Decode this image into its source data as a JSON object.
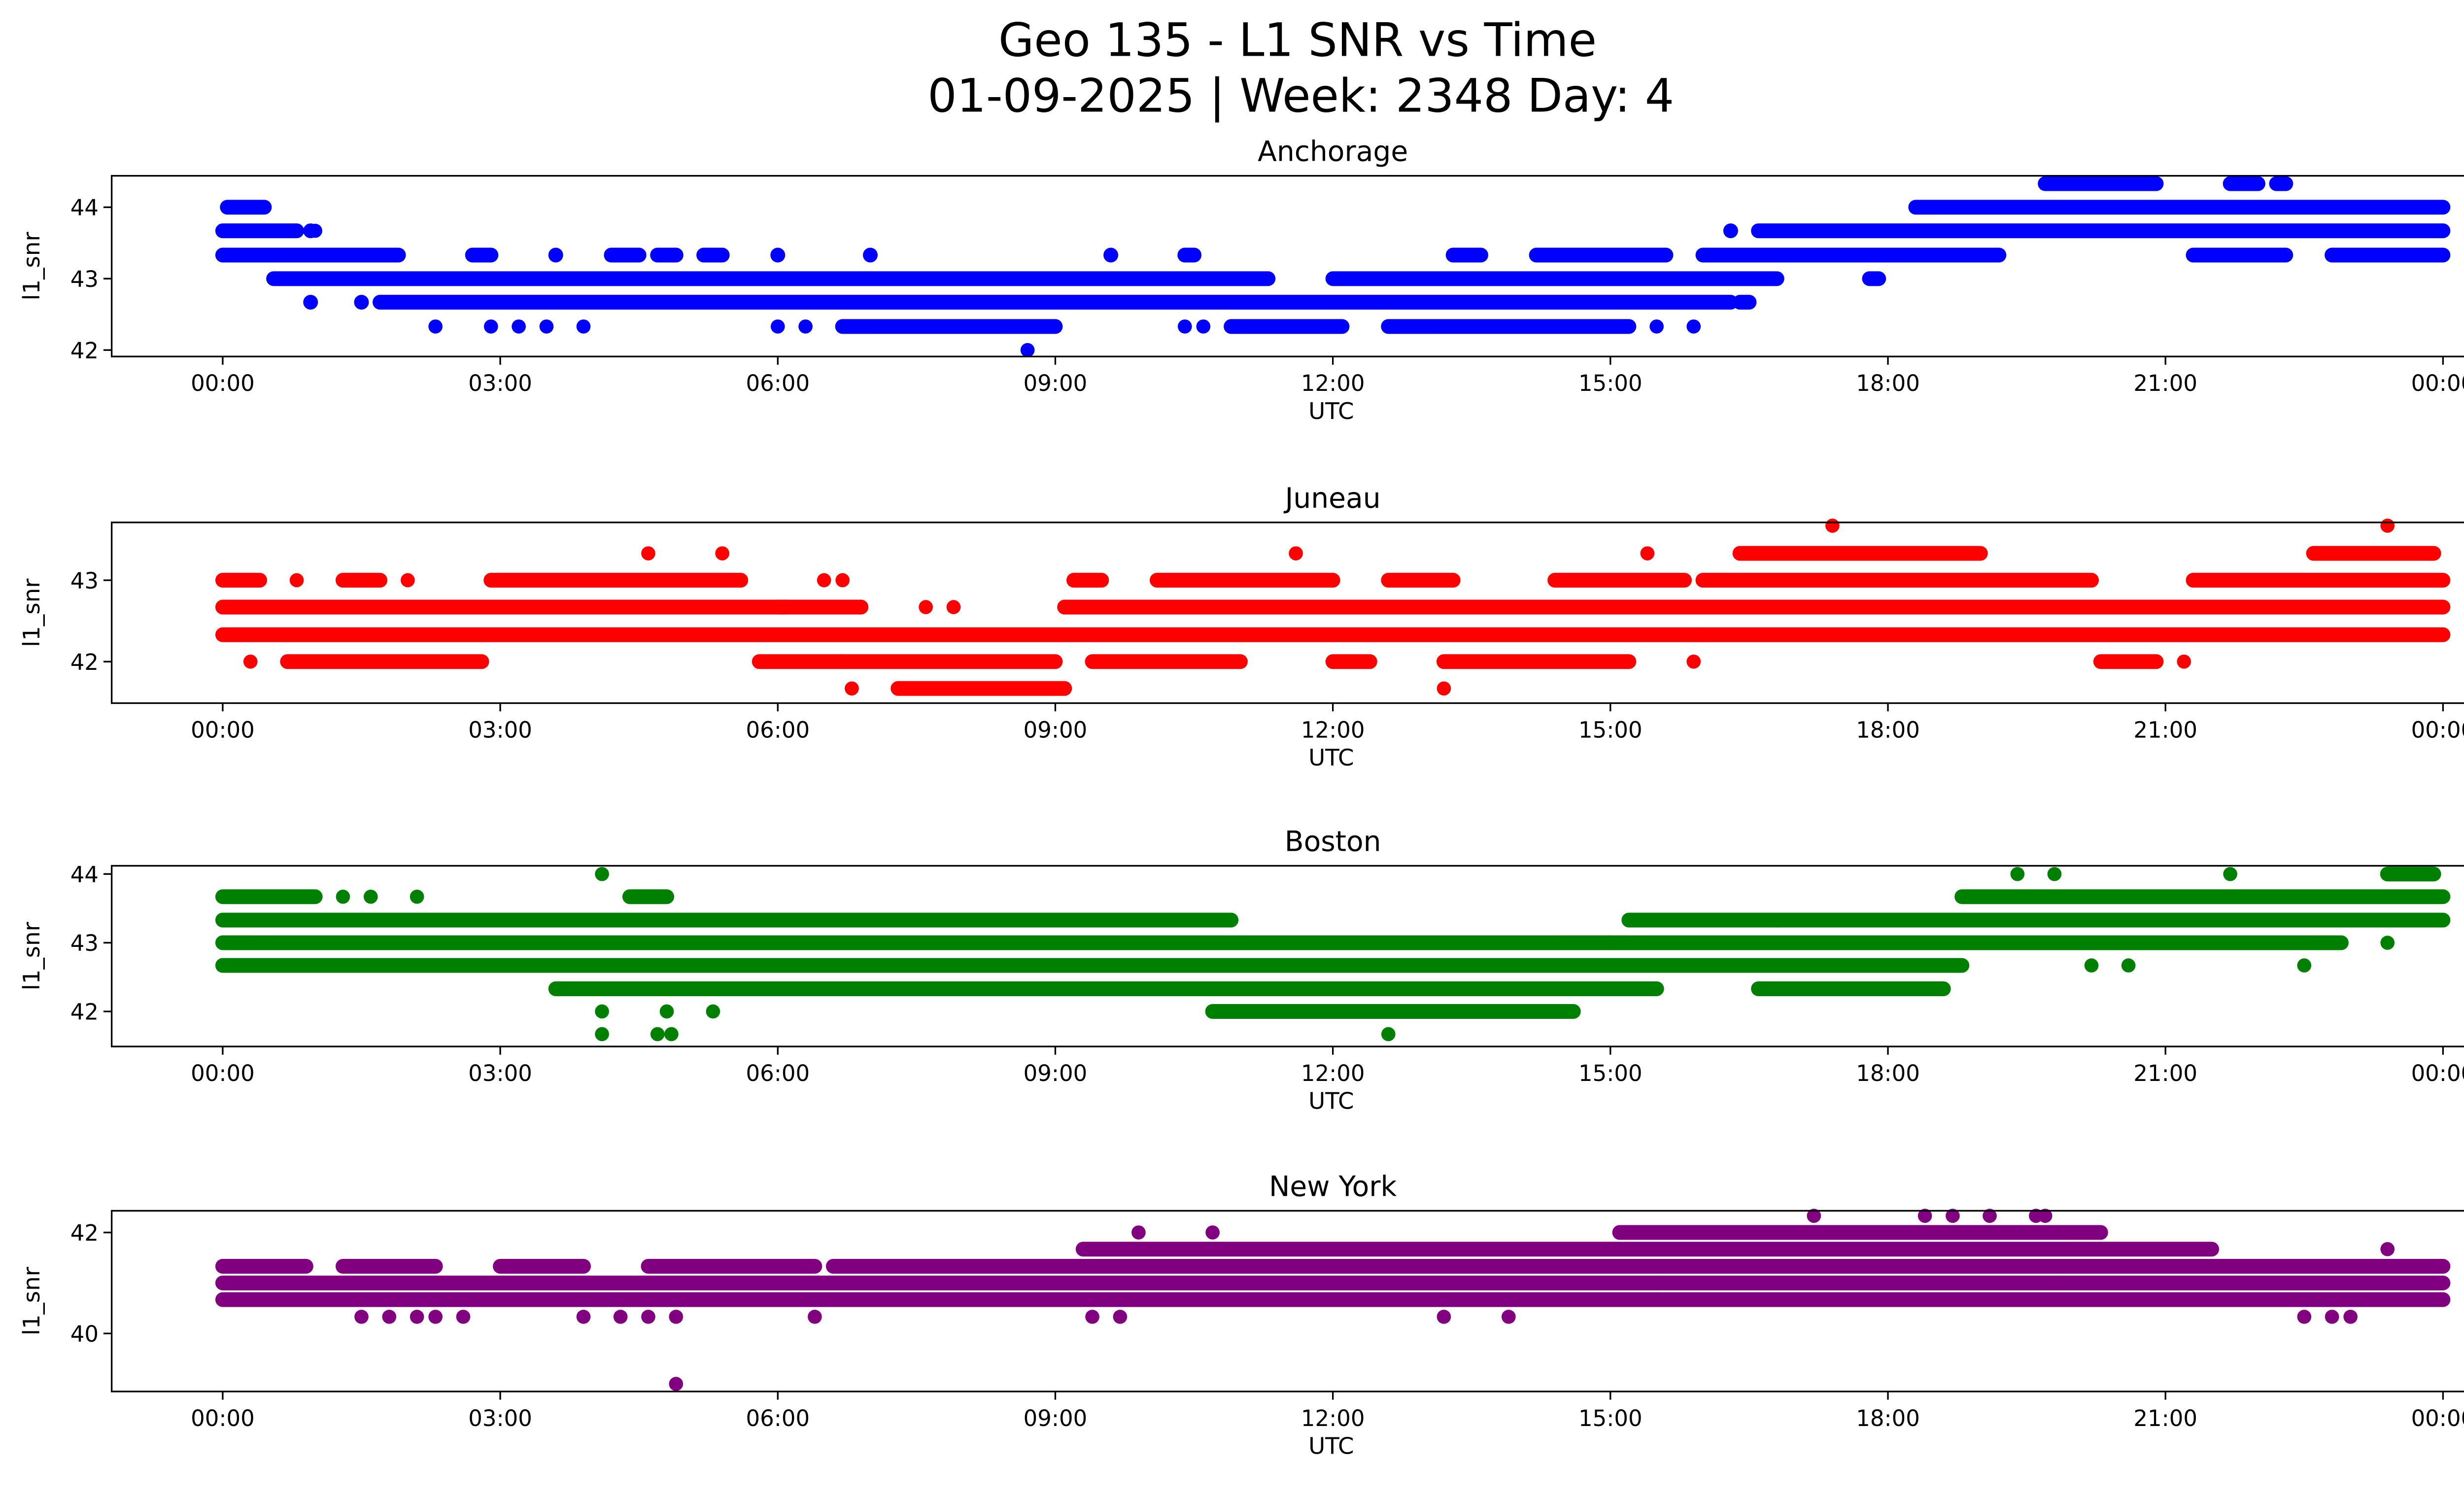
{
  "chart_data": {
    "type": "scatter",
    "title": "Geo 135 - L1 SNR vs Time",
    "subtitle": "01-09-2025 | Week: 2348 Day: 4",
    "xticks": [
      "00:00",
      "03:00",
      "06:00",
      "09:00",
      "12:00",
      "15:00",
      "18:00",
      "21:00",
      "00:00"
    ],
    "xlim_hours": [
      -1.2,
      25.2
    ],
    "panels": [
      {
        "title": "Anchorage",
        "xlabel": "UTC",
        "ylabel": "l1_snr",
        "color": "#0000ff",
        "ylim": [
          41.91,
          44.44
        ],
        "yticks": [
          42,
          43,
          44
        ],
        "bands": [
          [
            44.33,
            19.7,
            20.9
          ],
          [
            44.33,
            21.7,
            22.0
          ],
          [
            44.33,
            22.2,
            22.3
          ],
          [
            44.0,
            0.05,
            0.45
          ],
          [
            44.0,
            18.3,
            24
          ],
          [
            43.67,
            0,
            0.8
          ],
          [
            43.67,
            0.95,
            0.95
          ],
          [
            43.67,
            16.3,
            16.3
          ],
          [
            43.67,
            16.6,
            24
          ],
          [
            43.33,
            0,
            1.9
          ],
          [
            43.33,
            2.7,
            2.9
          ],
          [
            43.33,
            3.6,
            3.6
          ],
          [
            43.33,
            4.2,
            4.5
          ],
          [
            43.33,
            4.7,
            4.9
          ],
          [
            43.33,
            5.2,
            5.4
          ],
          [
            43.33,
            6.0,
            6.0
          ],
          [
            43.33,
            7.0,
            7.0
          ],
          [
            43.33,
            9.6,
            9.6
          ],
          [
            43.33,
            10.4,
            10.5
          ],
          [
            43.33,
            13.3,
            13.6
          ],
          [
            43.33,
            14.2,
            15.6
          ],
          [
            43.33,
            16.0,
            19.2
          ],
          [
            43.33,
            21.3,
            22.3
          ],
          [
            43.33,
            22.8,
            24
          ],
          [
            43.0,
            0.55,
            11.3
          ],
          [
            43.0,
            12.0,
            16.8
          ],
          [
            42.67,
            1.7,
            16.3
          ],
          [
            42.67,
            0.95,
            0.95
          ],
          [
            42.67,
            1.5,
            1.5
          ],
          [
            42.33,
            6.7,
            9.0
          ],
          [
            42.33,
            10.9,
            12.1
          ],
          [
            42.33,
            12.6,
            15.2
          ],
          [
            42.67,
            16.4,
            16.5
          ],
          [
            43.0,
            17.8,
            17.9
          ]
        ],
        "points": [
          [
            42.33,
            2.3
          ],
          [
            42.33,
            2.9
          ],
          [
            42.33,
            3.2
          ],
          [
            42.33,
            3.5
          ],
          [
            42.33,
            3.9
          ],
          [
            42.33,
            6.0
          ],
          [
            42.33,
            6.3
          ],
          [
            42.33,
            10.4
          ],
          [
            42.33,
            10.6
          ],
          [
            42.33,
            15.5
          ],
          [
            42.33,
            15.9
          ],
          [
            42.0,
            8.7
          ],
          [
            43.67,
            1.0
          ]
        ]
      },
      {
        "title": "Juneau",
        "xlabel": "UTC",
        "ylabel": "l1_snr",
        "color": "#ff0000",
        "ylim": [
          41.49,
          43.71
        ],
        "yticks": [
          42,
          43
        ],
        "bands": [
          [
            43.33,
            16.4,
            19.0
          ],
          [
            43.33,
            22.6,
            23.9
          ],
          [
            43.0,
            0,
            0.4
          ],
          [
            43.0,
            1.3,
            1.7
          ],
          [
            43.0,
            2.9,
            5.6
          ],
          [
            43.0,
            9.2,
            9.5
          ],
          [
            43.0,
            10.1,
            12.0
          ],
          [
            43.0,
            12.6,
            13.3
          ],
          [
            43.0,
            14.4,
            15.8
          ],
          [
            43.0,
            16.0,
            20.2
          ],
          [
            43.0,
            21.3,
            24
          ],
          [
            42.67,
            0,
            6.1
          ],
          [
            42.67,
            6.0,
            6.9
          ],
          [
            42.67,
            9.1,
            24
          ],
          [
            42.33,
            0,
            16.0
          ],
          [
            42.33,
            16.0,
            24
          ],
          [
            42.0,
            0.7,
            2.8
          ],
          [
            42.0,
            5.8,
            6.7
          ],
          [
            42.0,
            6.7,
            9.0
          ],
          [
            42.0,
            9.4,
            11.0
          ],
          [
            42.0,
            12.0,
            12.4
          ],
          [
            42.0,
            13.2,
            15.2
          ],
          [
            42.0,
            20.3,
            20.9
          ],
          [
            41.67,
            7.3,
            9.1
          ]
        ],
        "points": [
          [
            43.67,
            17.4
          ],
          [
            43.67,
            23.4
          ],
          [
            43.33,
            4.6
          ],
          [
            43.33,
            5.4
          ],
          [
            43.33,
            11.6
          ],
          [
            43.33,
            15.4
          ],
          [
            43.0,
            0.8
          ],
          [
            43.0,
            2.0
          ],
          [
            43.0,
            6.5
          ],
          [
            43.0,
            6.7
          ],
          [
            42.67,
            7.6
          ],
          [
            42.67,
            7.9
          ],
          [
            42.0,
            0.3
          ],
          [
            42.0,
            15.9
          ],
          [
            42.0,
            21.2
          ],
          [
            41.67,
            6.8
          ],
          [
            41.67,
            13.2
          ],
          [
            41.67,
            9.0
          ]
        ]
      },
      {
        "title": "Boston",
        "xlabel": "UTC",
        "ylabel": "l1_snr",
        "color": "#008000",
        "ylim": [
          41.49,
          44.12
        ],
        "yticks": [
          42,
          43,
          44
        ],
        "bands": [
          [
            44.0,
            23.4,
            23.9
          ],
          [
            43.67,
            0,
            1.0
          ],
          [
            43.67,
            4.4,
            4.8
          ],
          [
            43.67,
            18.8,
            24
          ],
          [
            43.33,
            0,
            10.9
          ],
          [
            43.33,
            15.2,
            16.8
          ],
          [
            43.33,
            16.8,
            24
          ],
          [
            43.0,
            0,
            15.0
          ],
          [
            43.0,
            15.0,
            22.9
          ],
          [
            42.67,
            0,
            18.8
          ],
          [
            42.33,
            3.6,
            15.5
          ],
          [
            42.33,
            16.6,
            18.6
          ],
          [
            42.0,
            10.7,
            14.6
          ]
        ],
        "points": [
          [
            44.0,
            4.1
          ],
          [
            44.0,
            19.4
          ],
          [
            44.0,
            19.8
          ],
          [
            44.0,
            21.7
          ],
          [
            43.67,
            1.3
          ],
          [
            43.67,
            1.6
          ],
          [
            43.67,
            2.1
          ],
          [
            43.0,
            23.4
          ],
          [
            42.67,
            20.2
          ],
          [
            42.67,
            20.6
          ],
          [
            42.67,
            22.5
          ],
          [
            42.33,
            6.4
          ],
          [
            42.0,
            4.1
          ],
          [
            42.0,
            4.8
          ],
          [
            42.0,
            5.3
          ],
          [
            41.67,
            4.1
          ],
          [
            41.67,
            4.7
          ],
          [
            41.67,
            4.85
          ],
          [
            41.67,
            12.6
          ]
        ]
      },
      {
        "title": "New York",
        "xlabel": "UTC",
        "ylabel": "l1_snr",
        "color": "#800080",
        "ylim": [
          38.85,
          42.43
        ],
        "yticks": [
          40,
          42
        ],
        "bands": [
          [
            42.0,
            15.1,
            20.3
          ],
          [
            41.67,
            9.3,
            21.5
          ],
          [
            41.33,
            0,
            0.9
          ],
          [
            41.33,
            1.3,
            2.3
          ],
          [
            41.33,
            3.0,
            3.9
          ],
          [
            41.33,
            4.6,
            6.4
          ],
          [
            41.33,
            6.6,
            24
          ],
          [
            41.0,
            0,
            15.5
          ],
          [
            41.0,
            15.5,
            19.9
          ],
          [
            41.0,
            19.9,
            24
          ],
          [
            40.67,
            0,
            24
          ]
        ],
        "points": [
          [
            42.33,
            17.2
          ],
          [
            42.33,
            18.4
          ],
          [
            42.33,
            18.7
          ],
          [
            42.33,
            19.1
          ],
          [
            42.33,
            19.6
          ],
          [
            42.33,
            19.7
          ],
          [
            42.0,
            9.9
          ],
          [
            42.0,
            10.7
          ],
          [
            41.67,
            23.4
          ],
          [
            40.33,
            1.5
          ],
          [
            40.33,
            1.8
          ],
          [
            40.33,
            2.1
          ],
          [
            40.33,
            2.3
          ],
          [
            40.33,
            2.6
          ],
          [
            40.33,
            3.9
          ],
          [
            40.33,
            4.3
          ],
          [
            40.33,
            4.6
          ],
          [
            40.33,
            4.9
          ],
          [
            40.33,
            6.4
          ],
          [
            40.33,
            9.4
          ],
          [
            40.33,
            9.7
          ],
          [
            40.33,
            13.2
          ],
          [
            40.33,
            13.9
          ],
          [
            40.33,
            22.5
          ],
          [
            40.33,
            22.8
          ],
          [
            40.33,
            23.0
          ],
          [
            39.0,
            4.9
          ]
        ]
      }
    ]
  }
}
